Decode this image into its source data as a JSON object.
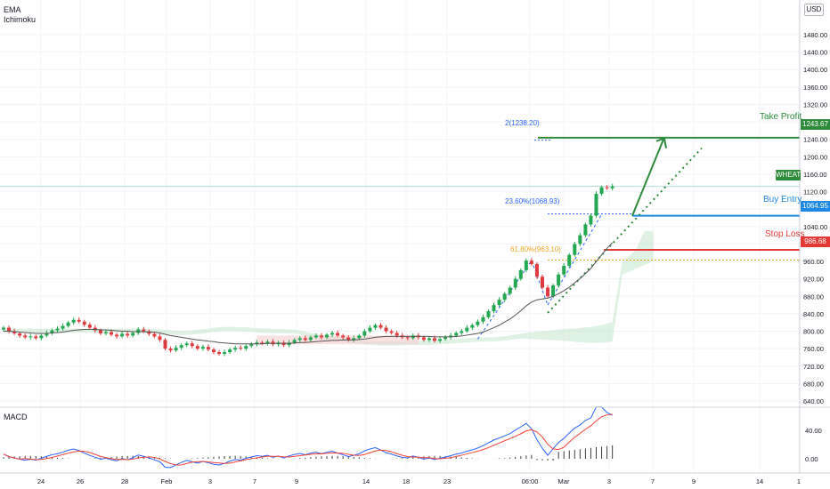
{
  "legend": {
    "ema": "EMA",
    "ichimoku": "Ichimoku",
    "macd": "MACD"
  },
  "currency": "USD",
  "symbol": "WHEATF",
  "colors": {
    "up": "#22a850",
    "down": "#e03a3e",
    "ema": "#555555",
    "cloud_bull": "#c9e8cf",
    "cloud_bear": "#f7cfd0",
    "take_profit": "#2e8b3b",
    "buy": "#1e88e5",
    "stop": "#e53935",
    "fib_blue": "#2962ff",
    "fib_orange": "#f5a623",
    "macd": "#2962ff",
    "signal": "#f44336"
  },
  "annotations": {
    "take_profit": "Take Profit",
    "buy_entry": "Buy Entry",
    "stop_loss": "Stop Loss",
    "fib_2": "2(1238.20)",
    "fib_236": "23.60%(1068.93)",
    "fib_618": "61.80%(963.10)"
  },
  "price_badges": {
    "take_profit": "1243.67",
    "buy_entry": "1064.95",
    "stop_loss": "986.68"
  },
  "chart_data": {
    "type": "candlestick",
    "y_axis": {
      "min": 640,
      "max": 1480,
      "ticks": [
        "1480.00",
        "1440.00",
        "1400.00",
        "1360.00",
        "1320.00",
        "1280.00",
        "1240.00",
        "1200.00",
        "1160.00",
        "1120.00",
        "1080.00",
        "1040.00",
        "1000.00",
        "960.00",
        "920.00",
        "880.00",
        "840.00",
        "800.00",
        "760.00",
        "720.00",
        "680.00",
        "640.00"
      ]
    },
    "x_axis": {
      "ticks": [
        "24",
        "26",
        "28",
        "Feb",
        "3",
        "7",
        "9",
        "14",
        "18",
        "23",
        "06:00",
        "Mar",
        "3",
        "7",
        "9",
        "14",
        "1"
      ]
    },
    "levels": {
      "take_profit": 1243.67,
      "buy_entry": 1064.95,
      "stop_loss": 986.68,
      "current": 1132
    },
    "closes": [
      808,
      800,
      795,
      790,
      786,
      788,
      784,
      790,
      796,
      802,
      806,
      812,
      820,
      826,
      822,
      815,
      808,
      802,
      795,
      798,
      792,
      788,
      794,
      790,
      796,
      804,
      800,
      794,
      788,
      780,
      760,
      756,
      762,
      768,
      772,
      766,
      760,
      764,
      758,
      752,
      748,
      752,
      758,
      762,
      760,
      766,
      770,
      774,
      772,
      776,
      770,
      774,
      768,
      774,
      780,
      784,
      780,
      786,
      790,
      786,
      792,
      796,
      790,
      786,
      780,
      784,
      790,
      800,
      808,
      814,
      808,
      800,
      796,
      790,
      786,
      784,
      790,
      786,
      780,
      784,
      778,
      782,
      786,
      790,
      796,
      800,
      808,
      814,
      822,
      832,
      846,
      860,
      872,
      886,
      900,
      920,
      940,
      962,
      954,
      925,
      900,
      880,
      905,
      930,
      950,
      975,
      1000,
      1020,
      1045,
      1065,
      1115,
      1130,
      1128,
      1132
    ],
    "ema": [
      800,
      800,
      799,
      798,
      797,
      796,
      795,
      795,
      795,
      796,
      797,
      798,
      800,
      802,
      803,
      804,
      804,
      804,
      803,
      803,
      802,
      801,
      800,
      800,
      799,
      799,
      799,
      798,
      798,
      796,
      793,
      790,
      788,
      786,
      784,
      782,
      780,
      779,
      777,
      776,
      774,
      773,
      772,
      771,
      771,
      771,
      771,
      771,
      771,
      772,
      772,
      772,
      772,
      772,
      773,
      774,
      774,
      775,
      776,
      777,
      778,
      779,
      779,
      780,
      780,
      780,
      781,
      782,
      784,
      786,
      787,
      788,
      788,
      788,
      788,
      788,
      788,
      788,
      788,
      788,
      787,
      787,
      787,
      787,
      788,
      789,
      791,
      793,
      795,
      798,
      803,
      808,
      814,
      821,
      828,
      837,
      847,
      858,
      867,
      872,
      874,
      876,
      880,
      886,
      893,
      901,
      911,
      921,
      932,
      944,
      960,
      975,
      990,
      1003
    ],
    "macd": {
      "ticks": [
        "40.00",
        "0.00"
      ],
      "y_min": -8,
      "y_max": 60
    }
  }
}
